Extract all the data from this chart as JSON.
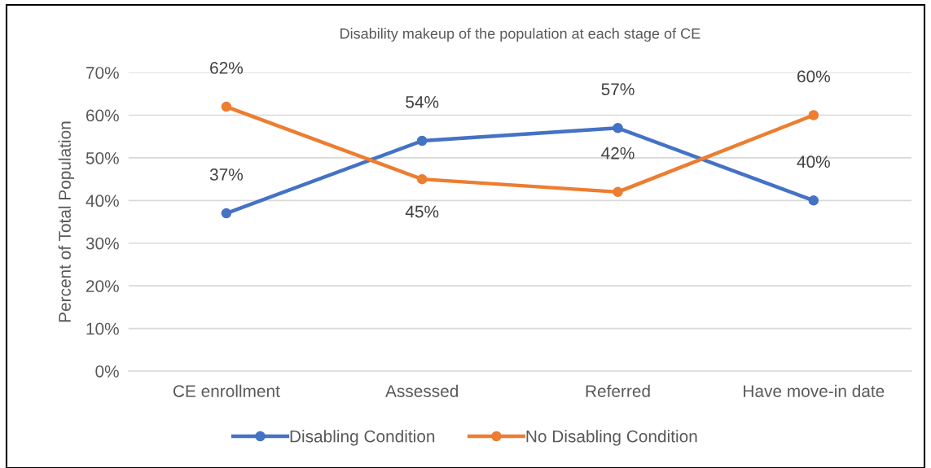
{
  "chart_data": {
    "type": "line",
    "title": "Disability makeup of the population at each stage of CE",
    "ylabel": "Percent of Total Population",
    "categories": [
      "CE enrollment",
      "Assessed",
      "Referred",
      "Have move-in date"
    ],
    "series": [
      {
        "name": "Disabling Condition",
        "color": "#4472c4",
        "values": [
          37,
          54,
          57,
          40
        ],
        "value_labels": [
          "37%",
          "54%",
          "57%",
          "40%"
        ]
      },
      {
        "name": "No Disabling Condition",
        "color": "#ed7d31",
        "values": [
          62,
          45,
          42,
          60
        ],
        "value_labels": [
          "62%",
          "45%",
          "42%",
          "60%"
        ]
      }
    ],
    "ylim": [
      0,
      70
    ],
    "yticks": [
      {
        "value": 0,
        "label": "0%"
      },
      {
        "value": 10,
        "label": "10%"
      },
      {
        "value": 20,
        "label": "20%"
      },
      {
        "value": 30,
        "label": "30%"
      },
      {
        "value": 40,
        "label": "40%"
      },
      {
        "value": 50,
        "label": "50%"
      },
      {
        "value": 60,
        "label": "60%"
      },
      {
        "value": 70,
        "label": "70%"
      }
    ],
    "grid": "y",
    "legend": "bottom",
    "marker": "circle",
    "line_style": "solid"
  }
}
